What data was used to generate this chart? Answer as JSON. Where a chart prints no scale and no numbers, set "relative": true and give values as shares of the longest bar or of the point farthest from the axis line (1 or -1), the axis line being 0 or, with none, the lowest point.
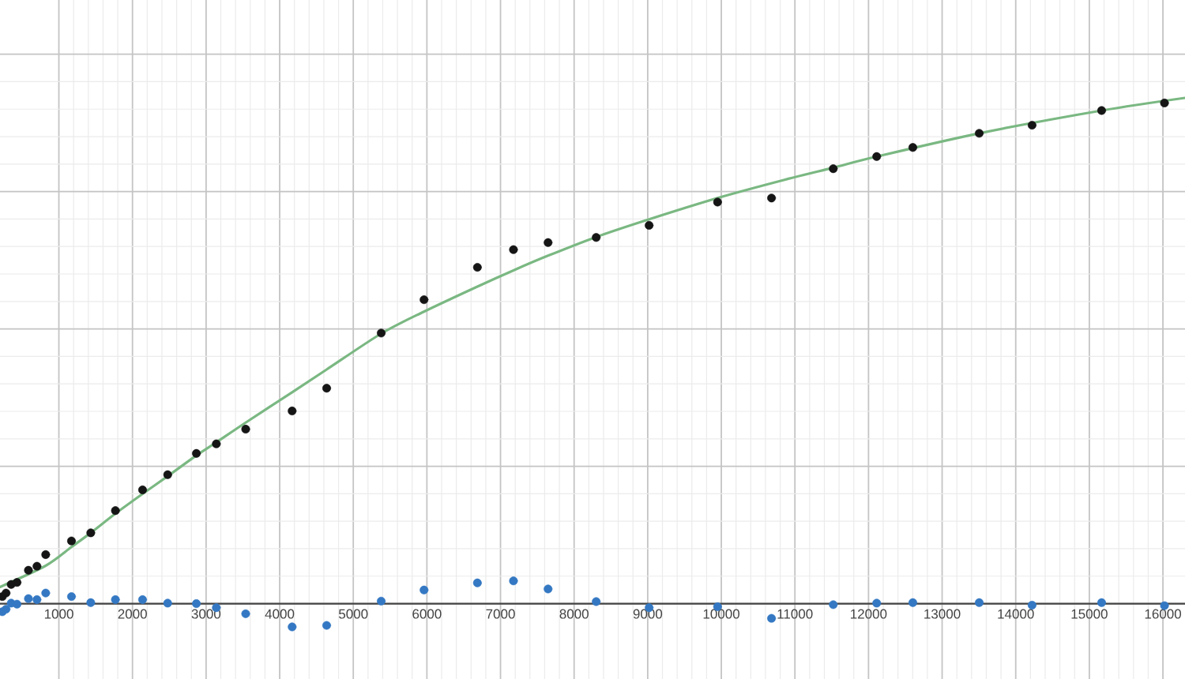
{
  "chart_data": {
    "type": "scatter",
    "relative": true,
    "marker": "circle",
    "grid": true,
    "tick_labels": "x",
    "x": [
      232,
      282,
      352,
      431,
      586,
      702,
      821,
      1171,
      1433,
      1768,
      2137,
      2478,
      2868,
      3139,
      3538,
      4169,
      4638,
      5379,
      5961,
      6686,
      7176,
      7646,
      8300,
      9019,
      9949,
      10682,
      11521,
      12111,
      12602,
      13504,
      14222,
      15167,
      16021
    ],
    "xlim": [
      200,
      16300
    ],
    "xticks": [
      1000,
      2000,
      3000,
      4000,
      5000,
      6000,
      7000,
      8000,
      9000,
      10000,
      11000,
      12000,
      13000,
      14000,
      15000,
      16000
    ],
    "series": [
      {
        "type": "line",
        "marker": "none",
        "color": "#7ab882",
        "x": [
          200,
          821,
          1171,
          1433,
          1768,
          2137,
          2478,
          2868,
          3139,
          3538,
          4169,
          4638,
          5379,
          5954,
          6686,
          7176,
          7646,
          8300,
          9019,
          9949,
          10859,
          11521,
          12111,
          13504,
          15167,
          16300
        ],
        "values": [
          0.033,
          0.075,
          0.112,
          0.14,
          0.178,
          0.217,
          0.252,
          0.293,
          0.319,
          0.358,
          0.418,
          0.463,
          0.534,
          0.577,
          0.627,
          0.659,
          0.688,
          0.725,
          0.76,
          0.802,
          0.838,
          0.862,
          0.884,
          0.93,
          0.975,
          1.0
        ]
      },
      {
        "color": "#151515",
        "values": [
          0.014,
          0.021,
          0.038,
          0.042,
          0.066,
          0.074,
          0.097,
          0.124,
          0.14,
          0.184,
          0.225,
          0.255,
          0.297,
          0.316,
          0.345,
          0.381,
          0.426,
          0.535,
          0.601,
          0.665,
          0.7,
          0.714,
          0.724,
          0.748,
          0.794,
          0.802,
          0.86,
          0.884,
          0.902,
          0.93,
          0.946,
          0.975,
          0.99
        ]
      },
      {
        "color": "#3478c3",
        "values": [
          -0.016,
          -0.011,
          0.001,
          -0.001,
          0.01,
          0.008,
          0.021,
          0.014,
          0.002,
          0.008,
          0.008,
          0.001,
          0.0,
          -0.008,
          -0.02,
          -0.046,
          -0.043,
          0.005,
          0.027,
          0.041,
          0.045,
          0.029,
          0.004,
          -0.008,
          -0.006,
          -0.029,
          -0.002,
          0.001,
          0.002,
          0.002,
          -0.003,
          0.002,
          -0.004
        ]
      }
    ]
  }
}
